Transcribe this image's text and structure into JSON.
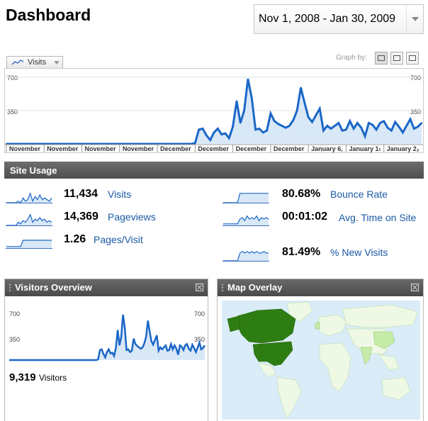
{
  "page": {
    "title": "Dashboard"
  },
  "date_range": {
    "value": "Nov 1, 2008 - Jan 30, 2009"
  },
  "graph_controls": {
    "metric": "Visits",
    "graph_by_label": "Graph by:"
  },
  "main_chart": {
    "y_ticks": [
      "700",
      "350"
    ],
    "x_labels": [
      "November",
      "November",
      "November",
      "November",
      "December",
      "December",
      "December",
      "December",
      "January 6,",
      "January 1‹",
      "January 2₂"
    ]
  },
  "chart_data": {
    "type": "area",
    "title": "",
    "xlabel": "",
    "ylabel": "Visits",
    "ylim": [
      0,
      700
    ],
    "grid": true,
    "series": [
      {
        "values": [
          0,
          0,
          0,
          0,
          0,
          0,
          0,
          0,
          0,
          0,
          0,
          0,
          0,
          0,
          0,
          0,
          0,
          0,
          0,
          0,
          0,
          0,
          0,
          0,
          0,
          0,
          0,
          0,
          0,
          0,
          0,
          0,
          0,
          0,
          0,
          0,
          0,
          0,
          0,
          0,
          0,
          0,
          0,
          0,
          0,
          0,
          0,
          0,
          0,
          0,
          10,
          150,
          160,
          90,
          40,
          120,
          160,
          100,
          110,
          60,
          180,
          450,
          220,
          350,
          680,
          480,
          150,
          160,
          120,
          140,
          320,
          240,
          210,
          190,
          170,
          190,
          250,
          350,
          590,
          430,
          280,
          230,
          300,
          370,
          140,
          190,
          160,
          190,
          220,
          140,
          150,
          240,
          160,
          220,
          170,
          80,
          220,
          200,
          150,
          220,
          240,
          170,
          140,
          230,
          180,
          120,
          190,
          260,
          160,
          180,
          220
        ]
      }
    ]
  },
  "site_usage": {
    "title": "Site Usage",
    "left": [
      {
        "value": "11,434",
        "label": "Visits"
      },
      {
        "value": "14,369",
        "label": "Pageviews"
      },
      {
        "value": "1.26",
        "label": "Pages/Visit"
      }
    ],
    "right": [
      {
        "value": "80.68%",
        "label": "Bounce Rate"
      },
      {
        "value": "00:01:02",
        "label": "Avg. Time on Site"
      },
      {
        "value": "81.49%",
        "label": "% New Visits"
      }
    ]
  },
  "visitors_overview": {
    "title": "Visitors Overview",
    "y_ticks": [
      "700",
      "350"
    ],
    "count": "9,319",
    "count_label": "Visitors"
  },
  "map_overlay": {
    "title": "Map Overlay"
  },
  "colors": {
    "line": "#1b67c7",
    "fill": "#d9e8f7",
    "link": "#1a5aa6",
    "map_dark": "#2e7d12",
    "map_light": "#c6eba8",
    "ocean": "#d9ecf8"
  }
}
